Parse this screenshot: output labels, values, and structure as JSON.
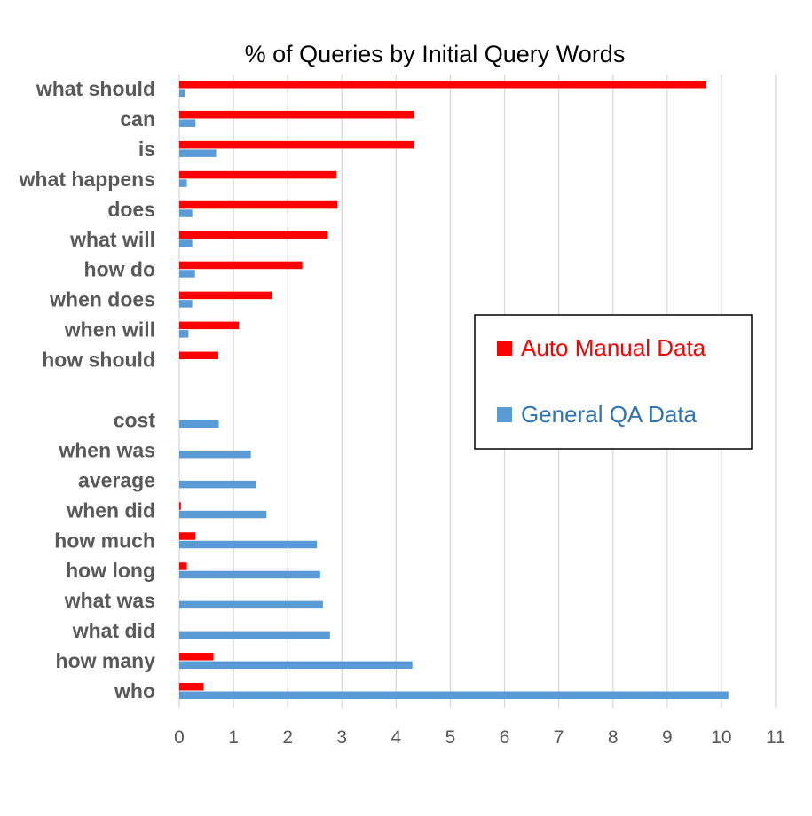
{
  "chart_data": {
    "type": "bar",
    "orientation": "horizontal",
    "title": "% of Queries by Initial Query Words",
    "xlabel": "",
    "ylabel": "",
    "xlim": [
      0,
      11
    ],
    "xticks": [
      "0",
      "1",
      "2",
      "3",
      "4",
      "5",
      "6",
      "7",
      "8",
      "9",
      "10",
      "11"
    ],
    "grid": "vertical",
    "legend_position": "right",
    "categories": [
      "what should",
      "can",
      "is",
      "what happens",
      "does",
      "what will",
      "how do",
      "when does",
      "when will",
      "how should",
      "",
      "cost",
      "when was",
      "average",
      "when did",
      "how much",
      "how long",
      "what was",
      "what did",
      "how many",
      "who"
    ],
    "series": [
      {
        "name": "Auto Manual Data",
        "color": "#ff0000",
        "values": [
          9.72,
          4.33,
          4.33,
          2.9,
          2.92,
          2.74,
          2.27,
          1.71,
          1.1,
          0.72,
          0,
          0,
          0,
          0,
          0.03,
          0.3,
          0.14,
          0,
          0,
          0.63,
          0.45
        ]
      },
      {
        "name": "General QA Data",
        "color": "#5b9bd5",
        "values": [
          0.1,
          0.3,
          0.68,
          0.14,
          0.24,
          0.24,
          0.29,
          0.24,
          0.17,
          0,
          0,
          0.73,
          1.32,
          1.41,
          1.61,
          2.54,
          2.6,
          2.65,
          2.78,
          4.3,
          10.13
        ]
      }
    ]
  }
}
